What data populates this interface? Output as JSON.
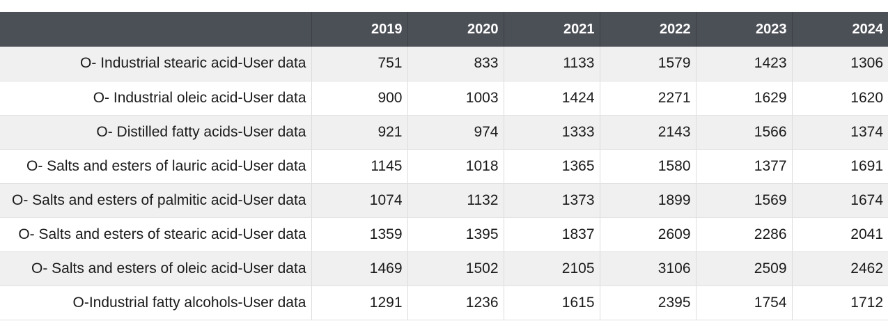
{
  "chart_data": {
    "type": "table",
    "columns": [
      "",
      "2019",
      "2020",
      "2021",
      "2022",
      "2023",
      "2024"
    ],
    "rows": [
      {
        "label": "O- Industrial stearic acid-User data",
        "values": [
          751,
          833,
          1133,
          1579,
          1423,
          1306
        ]
      },
      {
        "label": "O- Industrial oleic acid-User data",
        "values": [
          900,
          1003,
          1424,
          2271,
          1629,
          1620
        ]
      },
      {
        "label": "O- Distilled fatty acids-User data",
        "values": [
          921,
          974,
          1333,
          2143,
          1566,
          1374
        ]
      },
      {
        "label": "O- Salts and esters of lauric acid-User data",
        "values": [
          1145,
          1018,
          1365,
          1580,
          1377,
          1691
        ]
      },
      {
        "label": "O- Salts and esters of palmitic acid-User data",
        "values": [
          1074,
          1132,
          1373,
          1899,
          1569,
          1674
        ]
      },
      {
        "label": "O- Salts and esters of stearic acid-User data",
        "values": [
          1359,
          1395,
          1837,
          2609,
          2286,
          2041
        ]
      },
      {
        "label": "O- Salts and esters of oleic acid-User data",
        "values": [
          1469,
          1502,
          2105,
          3106,
          2509,
          2462
        ]
      },
      {
        "label": "O-Industrial fatty alcohols-User data",
        "values": [
          1291,
          1236,
          1615,
          2395,
          1754,
          1712
        ]
      }
    ]
  },
  "colors": {
    "header_bg": "#4b4f56",
    "header_text": "#ffffff",
    "row_stripe": "#f0f0f0",
    "row_plain": "#ffffff"
  }
}
